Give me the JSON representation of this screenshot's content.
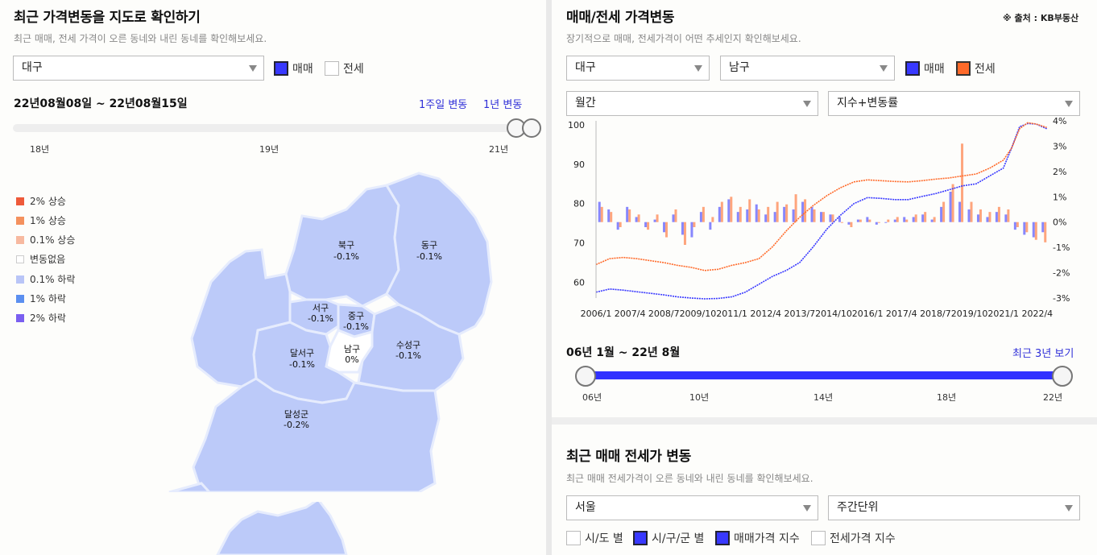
{
  "left": {
    "title": "최근 가격변동을 지도로 확인하기",
    "subtitle": "최근 매매, 전세 가격이 오른 동네와 내린 동네를 확인해보세요.",
    "region_select": "대구",
    "check_sale": "매매",
    "check_jeonse": "전세",
    "period": "22년08월08일 ~ 22년08월15일",
    "link_week": "1주일 변동",
    "link_year": "1년 변동",
    "timeline_ticks": [
      "18년",
      "19년",
      "21년"
    ],
    "legend": [
      {
        "label": "2% 상승",
        "color": "#ee5a3a"
      },
      {
        "label": "1% 상승",
        "color": "#f4915e"
      },
      {
        "label": "0.1% 상승",
        "color": "#f7b9a0"
      },
      {
        "label": "변동없음",
        "color": "#ffffff"
      },
      {
        "label": "0.1% 하락",
        "color": "#b9c5f7"
      },
      {
        "label": "1% 하락",
        "color": "#5b8ff0"
      },
      {
        "label": "2% 하락",
        "color": "#7a5ff0"
      }
    ],
    "map_fill": "#bccaf9",
    "map_stroke": "#e6ecfd",
    "regions": [
      {
        "name": "북구",
        "value": "-0.1%"
      },
      {
        "name": "동구",
        "value": "-0.1%"
      },
      {
        "name": "서구",
        "value": "-0.1%"
      },
      {
        "name": "중구",
        "value": "-0.1%"
      },
      {
        "name": "수성구",
        "value": "-0.1%"
      },
      {
        "name": "달서구",
        "value": "-0.1%"
      },
      {
        "name": "남구",
        "value": "0%"
      },
      {
        "name": "달성군",
        "value": "-0.2%"
      }
    ]
  },
  "right": {
    "title": "매매/전세 가격변동",
    "source": "※ 출처 : KB부동산",
    "subtitle": "장기적으로 매매, 전세가격이 어떤 추세인지 확인해보세요.",
    "city_select": "대구",
    "district_select": "남구",
    "check_sale": "매매",
    "check_jeonse": "전세",
    "interval_select": "월간",
    "metric_select": "지수+변동률",
    "period": "06년 1월 ~ 22년 8월",
    "link_recent": "최근 3년 보기",
    "range_ticks": [
      "06년",
      "10년",
      "14년",
      "18년",
      "22년"
    ],
    "section2_title": "최근 매매 전세가 변동",
    "section2_subtitle": "최근 매매 전세가격이 오른 동네와 내린 동네를 확인해보세요.",
    "section2_region": "서울",
    "section2_unit": "주간단위",
    "section2_checks": [
      "시/도 별",
      "시/구/군 별",
      "매매가격 지수",
      "전세가격 지수"
    ]
  },
  "colors": {
    "sale": "#3838ff",
    "jeonse": "#ff6a2a",
    "link": "#2f2fd8"
  },
  "chart_data": {
    "type": "line",
    "x_tick_labels": [
      "2006/1",
      "2007/4",
      "2008/7",
      "2009/10",
      "2011/1",
      "2012/4",
      "2013/7",
      "2014/10",
      "2016/1",
      "2017/4",
      "2018/7",
      "2019/10",
      "2021/1",
      "2022/4"
    ],
    "x_range": [
      "2006/1",
      "2022/8"
    ],
    "y_left": {
      "ticks": [
        60,
        70,
        80,
        90,
        100
      ],
      "range": [
        56,
        101
      ]
    },
    "y_right": {
      "ticks": [
        "4%",
        "3%",
        "2%",
        "1%",
        "0%",
        "-1%",
        "-2%",
        "-3%"
      ],
      "range": [
        -3,
        4
      ]
    },
    "series": [
      {
        "name": "매매",
        "axis": "left",
        "kind": "line",
        "points": [
          [
            2006.0,
            57.5
          ],
          [
            2006.5,
            58.3
          ],
          [
            2007.0,
            58.0
          ],
          [
            2007.5,
            57.6
          ],
          [
            2008.0,
            57.2
          ],
          [
            2008.5,
            56.8
          ],
          [
            2009.0,
            56.3
          ],
          [
            2009.5,
            56.0
          ],
          [
            2010.0,
            55.8
          ],
          [
            2010.5,
            55.9
          ],
          [
            2011.0,
            56.3
          ],
          [
            2011.5,
            57.5
          ],
          [
            2012.0,
            59.5
          ],
          [
            2012.5,
            61.5
          ],
          [
            2013.0,
            63.0
          ],
          [
            2013.5,
            65.0
          ],
          [
            2014.0,
            69.0
          ],
          [
            2014.5,
            73.5
          ],
          [
            2015.0,
            77.0
          ],
          [
            2015.5,
            80.0
          ],
          [
            2016.0,
            81.5
          ],
          [
            2016.5,
            81.3
          ],
          [
            2017.0,
            81.0
          ],
          [
            2017.5,
            81.0
          ],
          [
            2018.0,
            81.8
          ],
          [
            2018.5,
            82.5
          ],
          [
            2019.0,
            83.5
          ],
          [
            2019.5,
            84.5
          ],
          [
            2020.0,
            85.0
          ],
          [
            2020.5,
            87.0
          ],
          [
            2021.0,
            89.0
          ],
          [
            2021.3,
            94.0
          ],
          [
            2021.6,
            99.5
          ],
          [
            2021.9,
            100.3
          ],
          [
            2022.2,
            100.2
          ],
          [
            2022.6,
            99.0
          ]
        ]
      },
      {
        "name": "전세",
        "axis": "left",
        "kind": "line",
        "points": [
          [
            2006.0,
            64.5
          ],
          [
            2006.5,
            66.0
          ],
          [
            2007.0,
            66.3
          ],
          [
            2007.5,
            66.0
          ],
          [
            2008.0,
            65.5
          ],
          [
            2008.5,
            65.0
          ],
          [
            2009.0,
            64.3
          ],
          [
            2009.5,
            63.8
          ],
          [
            2010.0,
            63.0
          ],
          [
            2010.5,
            63.3
          ],
          [
            2011.0,
            64.3
          ],
          [
            2011.5,
            65.0
          ],
          [
            2012.0,
            66.0
          ],
          [
            2012.5,
            69.0
          ],
          [
            2013.0,
            73.0
          ],
          [
            2013.5,
            76.5
          ],
          [
            2014.0,
            79.5
          ],
          [
            2014.5,
            82.0
          ],
          [
            2015.0,
            84.0
          ],
          [
            2015.5,
            85.5
          ],
          [
            2016.0,
            86.0
          ],
          [
            2016.5,
            85.8
          ],
          [
            2017.0,
            85.6
          ],
          [
            2017.5,
            85.5
          ],
          [
            2018.0,
            85.8
          ],
          [
            2018.5,
            86.2
          ],
          [
            2019.0,
            86.5
          ],
          [
            2019.5,
            87.0
          ],
          [
            2020.0,
            87.5
          ],
          [
            2020.5,
            89.0
          ],
          [
            2021.0,
            91.0
          ],
          [
            2021.3,
            94.0
          ],
          [
            2021.6,
            99.0
          ],
          [
            2021.9,
            100.5
          ],
          [
            2022.2,
            100.2
          ],
          [
            2022.6,
            99.3
          ]
        ]
      },
      {
        "name": "매매 변동률",
        "axis": "right",
        "kind": "bar",
        "values_percent": [
          0.8,
          0.5,
          -0.3,
          0.6,
          0.2,
          -0.2,
          0.1,
          -0.4,
          0.3,
          -0.5,
          -0.6,
          0.4,
          -0.3,
          0.6,
          0.9,
          0.4,
          0.5,
          0.7,
          0.3,
          0.4,
          0.6,
          0.5,
          0.8,
          0.6,
          0.4,
          0.3,
          0.2,
          -0.1,
          0.1,
          0.2,
          -0.1,
          0.0,
          0.1,
          0.2,
          0.2,
          0.3,
          0.1,
          0.6,
          1.2,
          0.8,
          0.5,
          0.3,
          0.2,
          0.4,
          0.3,
          -0.3,
          -0.5,
          -0.6,
          -0.4
        ]
      },
      {
        "name": "전세 변동률",
        "axis": "right",
        "kind": "bar",
        "values_percent": [
          0.6,
          0.4,
          -0.2,
          0.5,
          0.3,
          -0.3,
          0.3,
          -0.6,
          0.5,
          -0.9,
          -0.2,
          0.6,
          0.2,
          0.8,
          1.0,
          0.6,
          0.9,
          0.5,
          0.6,
          0.8,
          0.7,
          1.1,
          0.9,
          0.5,
          0.4,
          0.3,
          0.0,
          -0.2,
          0.1,
          0.1,
          0.0,
          0.1,
          0.2,
          0.1,
          0.3,
          0.4,
          0.2,
          0.8,
          1.5,
          3.1,
          0.8,
          0.5,
          0.4,
          0.6,
          0.5,
          -0.2,
          -0.4,
          -0.7,
          -0.8
        ]
      }
    ],
    "grid": false,
    "legend": "none"
  }
}
